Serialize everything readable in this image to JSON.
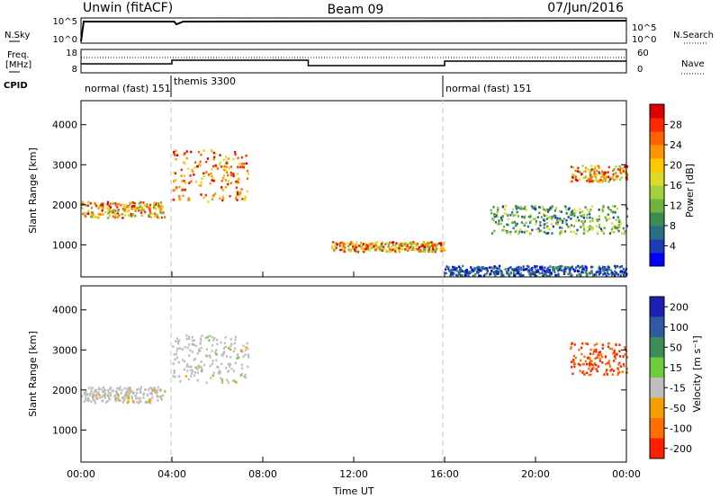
{
  "header": {
    "title": "Unwin (fitACF)",
    "beam": "Beam 09",
    "date": "07/Jun/2016"
  },
  "panels": {
    "nsky": {
      "left_label": "N.Sky",
      "left_ticks": [
        "10^5",
        "10^0"
      ],
      "right_ticks": [
        "10^5",
        "10^0"
      ],
      "right_label": "N.Search"
    },
    "freq": {
      "left_label_line1": "Freq.",
      "left_label_line2": "[MHz]",
      "left_ticks": [
        "18",
        "8"
      ],
      "right_ticks": [
        "60",
        "0"
      ],
      "right_label": "Nave"
    },
    "cpid": {
      "label": "CPID",
      "modes": [
        {
          "name": "normal (fast)",
          "id": "151"
        },
        {
          "name": "themis",
          "id": "3300"
        },
        {
          "name": "normal (fast)",
          "id": "151"
        }
      ]
    }
  },
  "chart_data": [
    {
      "type": "heatmap",
      "name": "power",
      "ylabel": "Slant Range [km]",
      "y_ticks": [
        "1000",
        "2000",
        "3000",
        "4000"
      ],
      "ylim": [
        200,
        4600
      ],
      "xlim_hours": [
        0,
        24
      ],
      "colorbar": {
        "label": "Power [dB]",
        "ticks": [
          "4",
          "8",
          "12",
          "16",
          "20",
          "24",
          "28"
        ],
        "colors": [
          "#0000ff",
          "#1e3cb4",
          "#2a6e82",
          "#3c8c50",
          "#6eb43c",
          "#a0d23c",
          "#dcdc28",
          "#ffc800",
          "#ff9600",
          "#ff6400",
          "#ff2800",
          "#dc0000"
        ]
      },
      "features": [
        {
          "kind": "band",
          "t_start": "00:00",
          "t_end": "03:40",
          "range_km": [
            1700,
            2100
          ],
          "level": "moderate-high"
        },
        {
          "kind": "band",
          "t_start": "04:00",
          "t_end": "07:20",
          "range_km": [
            2100,
            3400
          ],
          "level": "high"
        },
        {
          "kind": "band",
          "t_start": "11:00",
          "t_end": "16:00",
          "range_km": [
            850,
            1100
          ],
          "level": "moderate-high"
        },
        {
          "kind": "band",
          "t_start": "16:00",
          "t_end": "24:00",
          "range_km": [
            250,
            500
          ],
          "level": "low"
        },
        {
          "kind": "band",
          "t_start": "18:00",
          "t_end": "24:00",
          "range_km": [
            1300,
            2000
          ],
          "level": "low-moderate"
        },
        {
          "kind": "band",
          "t_start": "21:30",
          "t_end": "24:00",
          "range_km": [
            2600,
            3000
          ],
          "level": "moderate-high"
        }
      ]
    },
    {
      "type": "heatmap",
      "name": "velocity",
      "ylabel": "Slant Range [km]",
      "y_ticks": [
        "1000",
        "2000",
        "3000",
        "4000"
      ],
      "ylim": [
        200,
        4600
      ],
      "xlim_hours": [
        0,
        24
      ],
      "xlabel": "Time UT",
      "x_ticks": [
        "00:00",
        "04:00",
        "08:00",
        "12:00",
        "16:00",
        "20:00",
        "00:00"
      ],
      "colorbar": {
        "label": "Velocity [m s⁻¹]",
        "ticks": [
          "200",
          "100",
          "50",
          "15",
          "-15",
          "-50",
          "-100",
          "-200"
        ],
        "colors": [
          "#1e1eb4",
          "#2d5aa0",
          "#3c8c5a",
          "#6ecc3c",
          "#bebebe",
          "#f5a000",
          "#ff6e00",
          "#ff1e00"
        ]
      },
      "features": [
        {
          "kind": "band",
          "t_start": "00:00",
          "t_end": "03:40",
          "range_km": [
            1700,
            2100
          ],
          "velocity": "near zero (ground scatter)"
        },
        {
          "kind": "band",
          "t_start": "04:00",
          "t_end": "07:20",
          "range_km": [
            2200,
            3400
          ],
          "velocity": "near zero (ground scatter)"
        },
        {
          "kind": "band",
          "t_start": "21:30",
          "t_end": "24:00",
          "range_km": [
            2400,
            3200
          ],
          "velocity": "-200 to -100"
        }
      ]
    }
  ],
  "colors": {
    "axis": "#000000",
    "dashed_divider": "#c8c8c8"
  }
}
